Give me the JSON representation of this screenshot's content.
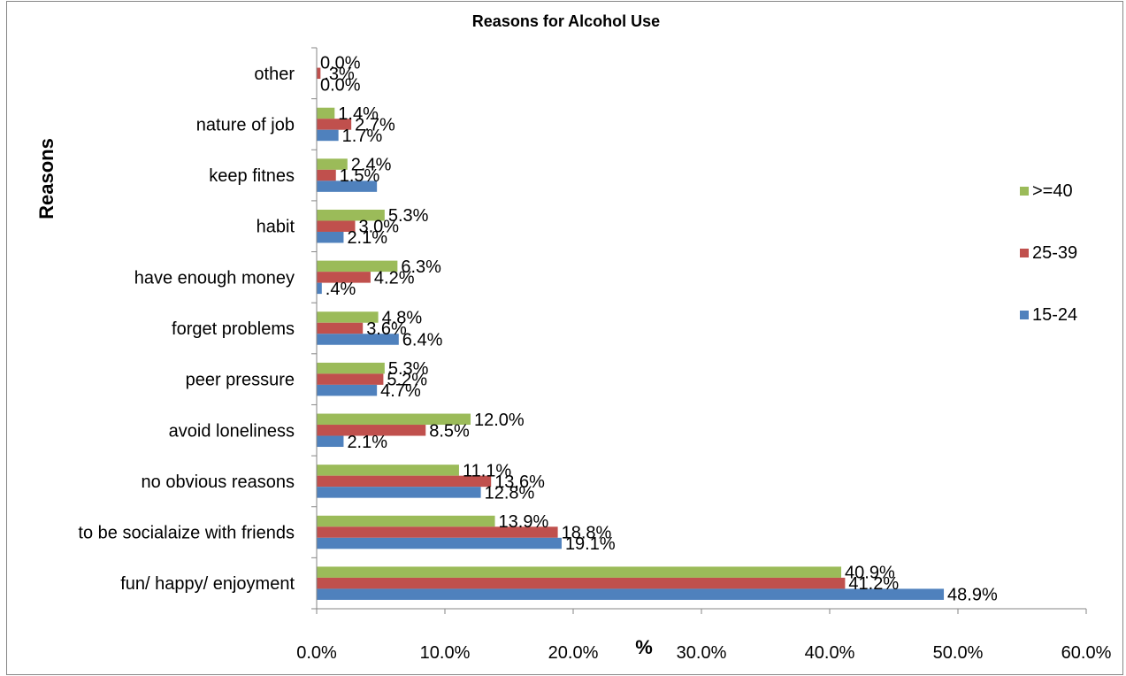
{
  "chart_data": {
    "type": "bar",
    "orientation": "horizontal",
    "title": "Reasons for Alcohol Use",
    "xlabel": "%",
    "ylabel": "Reasons",
    "xlim": [
      0,
      60
    ],
    "x_ticks": [
      "0.0%",
      "10.0%",
      "20.0%",
      "30.0%",
      "40.0%",
      "50.0%",
      "60.0%"
    ],
    "grid": false,
    "legend_position": "right",
    "categories": [
      "other",
      "nature of job",
      "keep fitnes",
      "habit",
      "have enough money",
      "forget problems",
      "peer pressure",
      "avoid loneliness",
      "no obvious reasons",
      "to be socialaize with friends",
      "fun/ happy/ enjoyment"
    ],
    "series": [
      {
        "name": ">=40",
        "color": "#9BBB59",
        "values": [
          0.0,
          1.4,
          2.4,
          5.3,
          6.3,
          4.8,
          5.3,
          12.0,
          11.1,
          13.9,
          40.9
        ],
        "labels": [
          "0.0%",
          "1.4%",
          "2.4%",
          "5.3%",
          "6.3%",
          "4.8%",
          "5.3%",
          "12.0%",
          "11.1%",
          "13.9%",
          "40.9%"
        ]
      },
      {
        "name": "25-39",
        "color": "#C0504D",
        "values": [
          0.3,
          2.7,
          1.5,
          3.0,
          4.2,
          3.6,
          5.2,
          8.5,
          13.6,
          18.8,
          41.2
        ],
        "labels": [
          ".3%",
          "2.7%",
          "1.5%",
          "3.0%",
          "4.2%",
          "3.6%",
          "5.2%",
          "8.5%",
          "13.6%",
          "18.8%",
          "41.2%"
        ]
      },
      {
        "name": "15-24",
        "color": "#4F81BD",
        "values": [
          0.0,
          1.7,
          4.7,
          2.1,
          0.4,
          6.4,
          4.7,
          2.1,
          12.8,
          19.1,
          48.9
        ],
        "labels": [
          "0.0%",
          "1.7%",
          "",
          "2.1%",
          ".4%",
          "6.4%",
          "4.7%",
          "2.1%",
          "12.8%",
          "19.1%",
          "48.9%"
        ]
      }
    ]
  }
}
